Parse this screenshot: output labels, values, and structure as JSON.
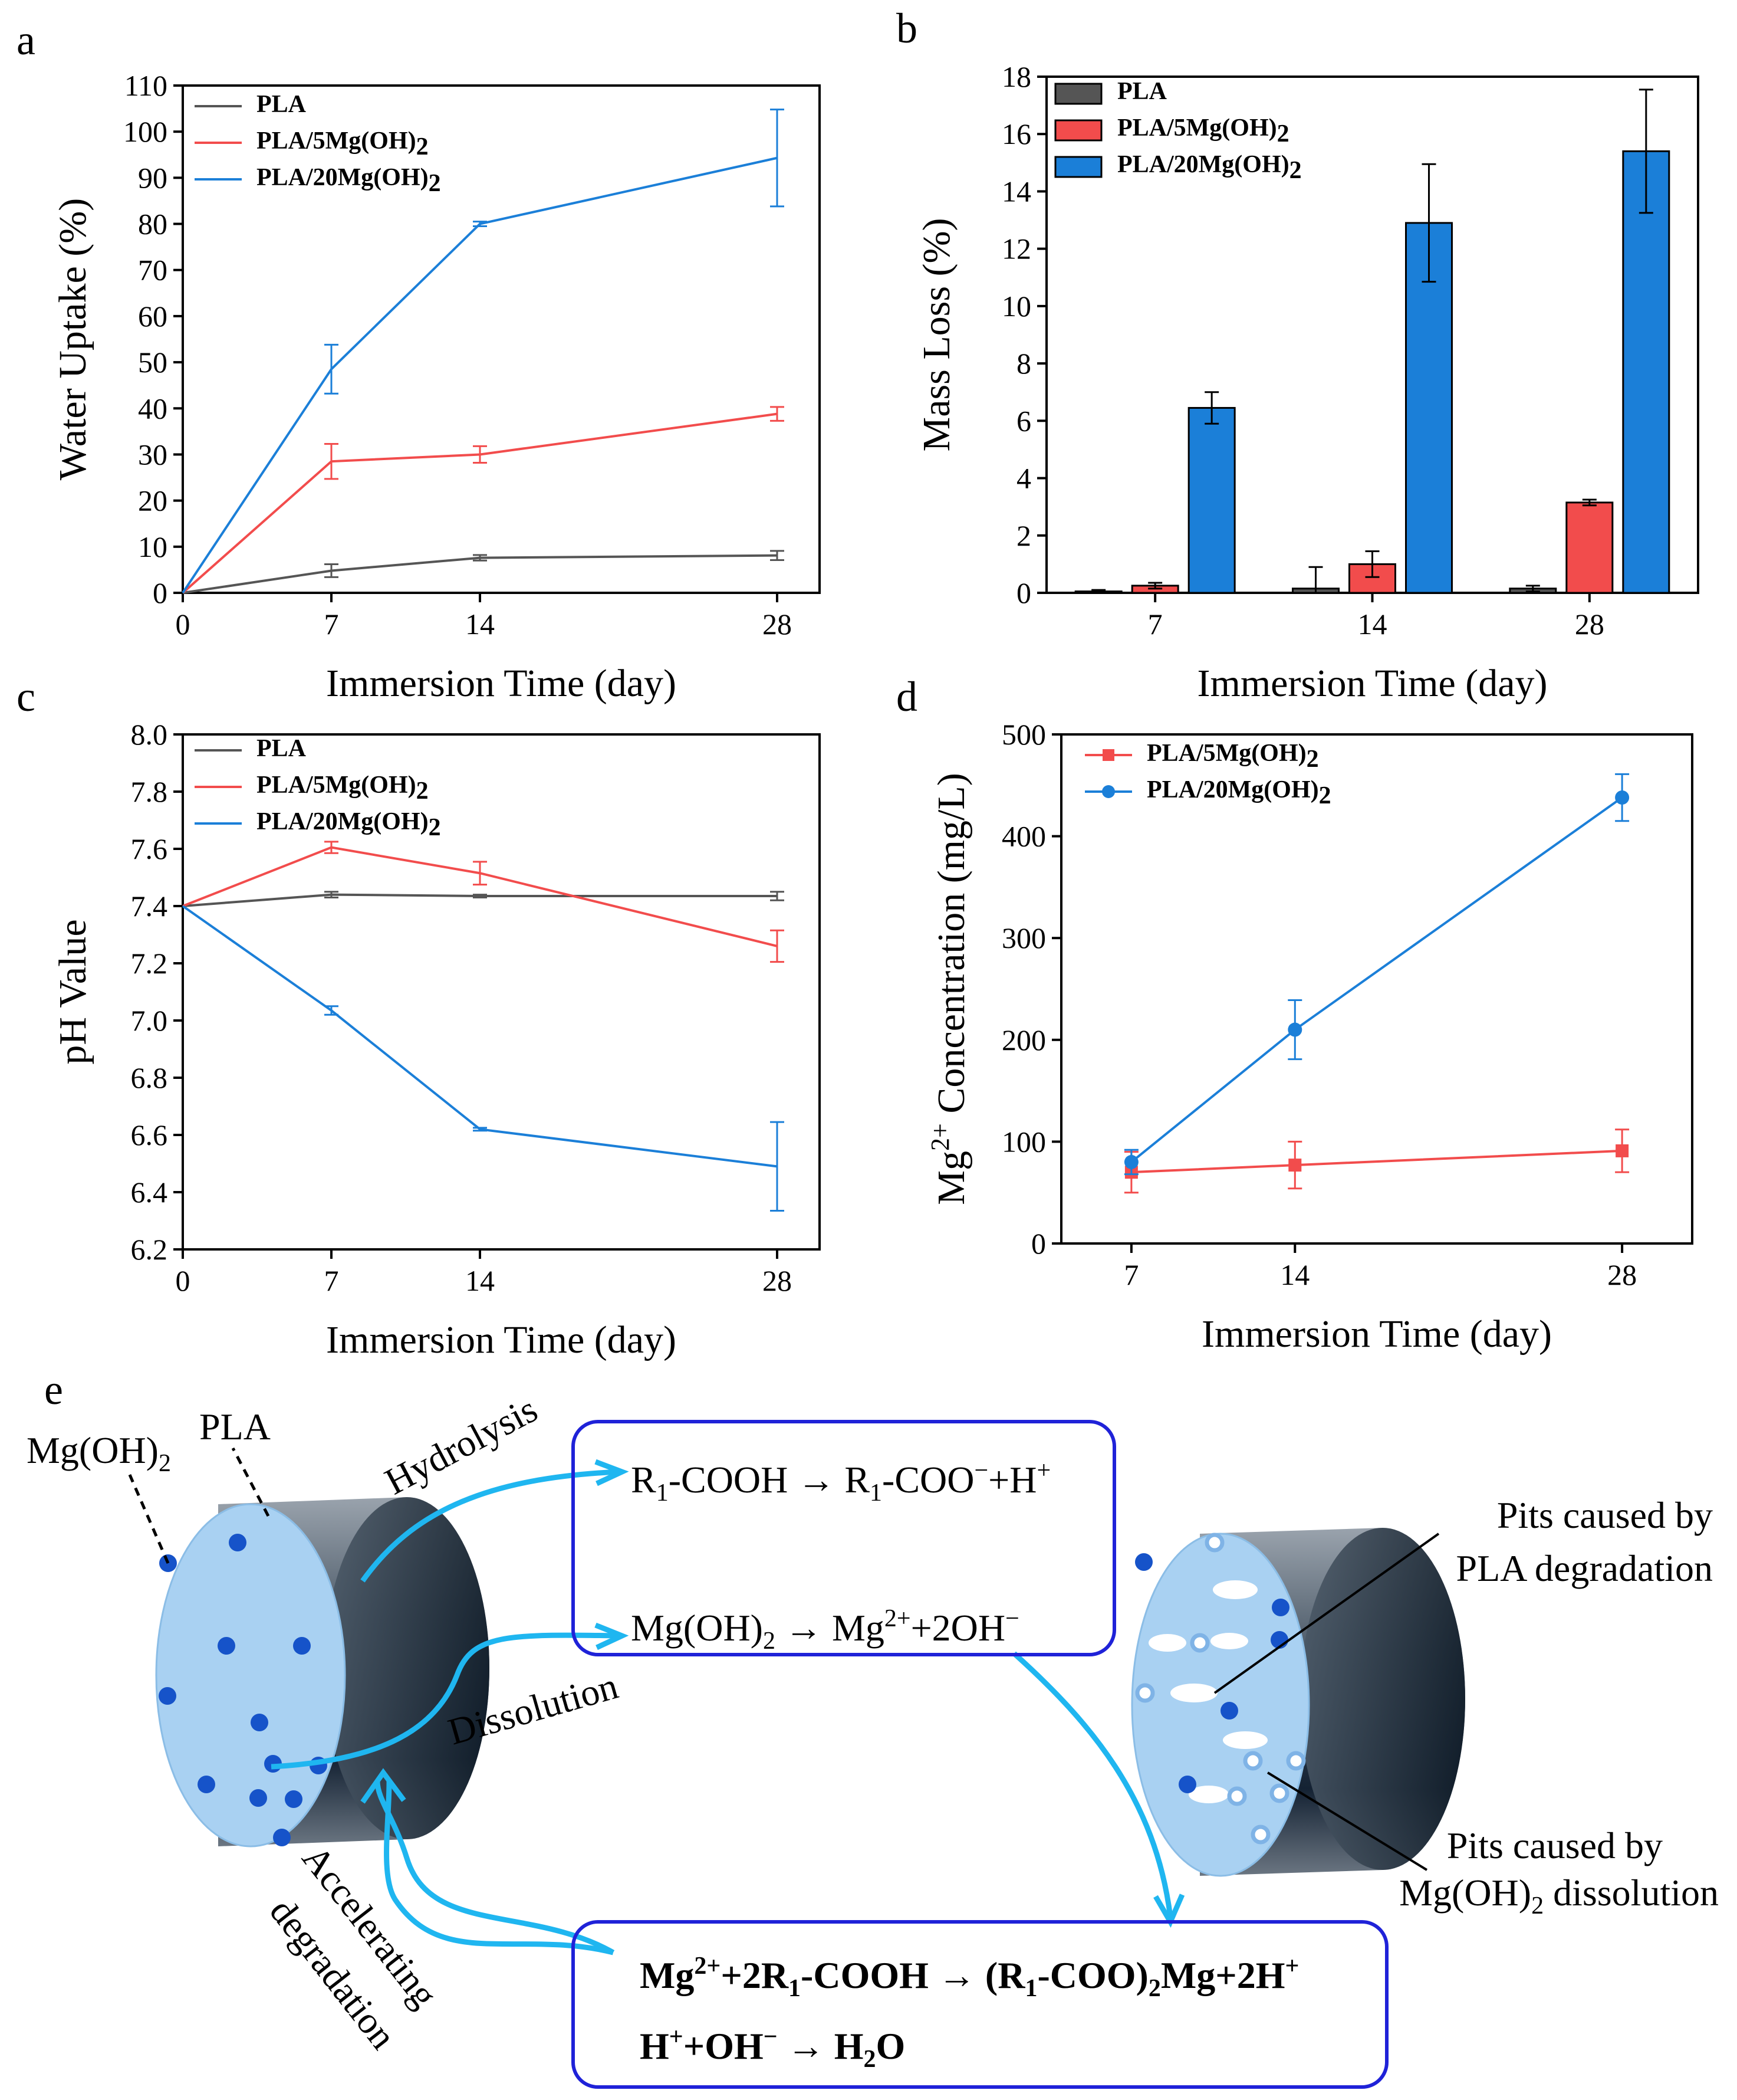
{
  "colors": {
    "pla": "#555555",
    "pla5": "#f24c4c",
    "pla20": "#1b7fd8",
    "box": "#1f22d8",
    "arrow": "#1fb6f0"
  },
  "panels": {
    "a": {
      "letter": "a"
    },
    "b": {
      "letter": "b"
    },
    "c": {
      "letter": "c"
    },
    "d": {
      "letter": "d"
    },
    "e": {
      "letter": "e"
    }
  },
  "chart_data": [
    {
      "id": "a",
      "type": "line",
      "xlabel": "Immersion Time (day)",
      "ylabel": "Water Uptake (%)",
      "xlim": [
        0,
        30
      ],
      "ylim": [
        0,
        110
      ],
      "xticks": [
        0,
        7,
        14,
        28
      ],
      "yticks": [
        0,
        10,
        20,
        30,
        40,
        50,
        60,
        70,
        80,
        90,
        100,
        110
      ],
      "legend_position": "top-left",
      "series": [
        {
          "name": "PLA",
          "x": [
            0,
            7,
            14,
            28
          ],
          "values": [
            0,
            4.8,
            7.6,
            8.1
          ],
          "errors": [
            0,
            1.4,
            0.6,
            1.0
          ]
        },
        {
          "name": "PLA/5Mg(OH)2",
          "x": [
            0,
            7,
            14,
            28
          ],
          "values": [
            0,
            28.5,
            30,
            38.8
          ],
          "errors": [
            0,
            3.8,
            1.8,
            1.5
          ]
        },
        {
          "name": "PLA/20Mg(OH)2",
          "x": [
            0,
            7,
            14,
            28
          ],
          "values": [
            0,
            48.5,
            80,
            94.3
          ],
          "errors": [
            0,
            5.3,
            0.5,
            10.5
          ]
        }
      ]
    },
    {
      "id": "b",
      "type": "bar",
      "xlabel": "Immersion Time (day)",
      "ylabel": "Mass Loss (%)",
      "ylim": [
        0,
        18
      ],
      "yticks": [
        0,
        2,
        4,
        6,
        8,
        10,
        12,
        14,
        16,
        18
      ],
      "categories": [
        "7",
        "14",
        "28"
      ],
      "legend_position": "top-left",
      "series": [
        {
          "name": "PLA",
          "values": [
            0.05,
            0.15,
            0.15
          ],
          "errors": [
            0.05,
            0.75,
            0.1
          ]
        },
        {
          "name": "PLA/5Mg(OH)2",
          "values": [
            0.25,
            1.0,
            3.15
          ],
          "errors": [
            0.1,
            0.45,
            0.1
          ]
        },
        {
          "name": "PLA/20Mg(OH)2",
          "values": [
            6.45,
            12.9,
            15.4
          ],
          "errors": [
            0.55,
            2.05,
            2.15
          ]
        }
      ]
    },
    {
      "id": "c",
      "type": "line",
      "xlabel": "Immersion Time (day)",
      "ylabel": "pH Value",
      "xlim": [
        0,
        30
      ],
      "ylim": [
        6.2,
        8.0
      ],
      "xticks": [
        0,
        7,
        14,
        28
      ],
      "yticks": [
        6.2,
        6.4,
        6.6,
        6.8,
        7.0,
        7.2,
        7.4,
        7.6,
        7.8,
        8.0
      ],
      "legend_position": "top-left",
      "series": [
        {
          "name": "PLA",
          "x": [
            0,
            7,
            14,
            28
          ],
          "values": [
            7.4,
            7.44,
            7.435,
            7.435
          ],
          "errors": [
            0,
            0.01,
            0.005,
            0.015
          ]
        },
        {
          "name": "PLA/5Mg(OH)2",
          "x": [
            0,
            7,
            14,
            28
          ],
          "values": [
            7.4,
            7.605,
            7.515,
            7.26
          ],
          "errors": [
            0,
            0.02,
            0.04,
            0.055
          ]
        },
        {
          "name": "PLA/20Mg(OH)2",
          "x": [
            0,
            7,
            14,
            28
          ],
          "values": [
            7.4,
            7.035,
            6.62,
            6.49
          ],
          "errors": [
            0,
            0.015,
            0.005,
            0.155
          ]
        }
      ]
    },
    {
      "id": "d",
      "type": "line",
      "xlabel": "Immersion Time (day)",
      "ylabel": "Concentration (mg/L)",
      "ylabel_species": "Mg",
      "ylabel_charge": "2+",
      "xlim": [
        4,
        31
      ],
      "ylim": [
        0,
        500
      ],
      "xticks": [
        7,
        14,
        28
      ],
      "yticks": [
        0,
        100,
        200,
        300,
        400,
        500
      ],
      "legend_position": "top-left",
      "series": [
        {
          "name": "PLA/5Mg(OH)2",
          "marker": "square",
          "x": [
            7,
            14,
            28
          ],
          "values": [
            70,
            77,
            91
          ],
          "errors": [
            20,
            23,
            21
          ]
        },
        {
          "name": "PLA/20Mg(OH)2",
          "marker": "circle",
          "x": [
            7,
            14,
            28
          ],
          "values": [
            80,
            210,
            438
          ],
          "errors": [
            12,
            29,
            23
          ]
        }
      ]
    }
  ],
  "scheme": {
    "mgoh2": "Mg(OH)",
    "pla": "PLA",
    "hydrolysis": "Hydrolysis",
    "dissolution": "Dissolution",
    "accelerating": "Accelerating",
    "degradation": "degradation",
    "eq1_a": "R",
    "eq1_b": "-COOH → R",
    "eq1_c": "-COO",
    "eq1_d": "−",
    "eq1_e": "+H",
    "eq1_f": "+",
    "eq2_a": "Mg(OH)",
    "eq2_b": " → Mg",
    "eq2_c": "2+",
    "eq2_d": "+2OH",
    "eq2_e": "−",
    "eq3_a": "Mg",
    "eq3_b": "2+",
    "eq3_c": "+2R",
    "eq3_d": "-COOH → (R",
    "eq3_e": "-COO)",
    "eq3_f": "Mg+2H",
    "eq3_g": "+",
    "eq4_a": "H",
    "eq4_b": "+",
    "eq4_c": "+OH",
    "eq4_d": "−",
    "eq4_e": " → H",
    "eq4_f": "O",
    "pits1_l1": "Pits caused by",
    "pits1_l2": "PLA degradation",
    "pits2_l1": "Pits caused by",
    "pits2_l2": "Mg(OH)",
    "pits2_l3": " dissolution",
    "sub1": "1",
    "sub2": "2"
  }
}
